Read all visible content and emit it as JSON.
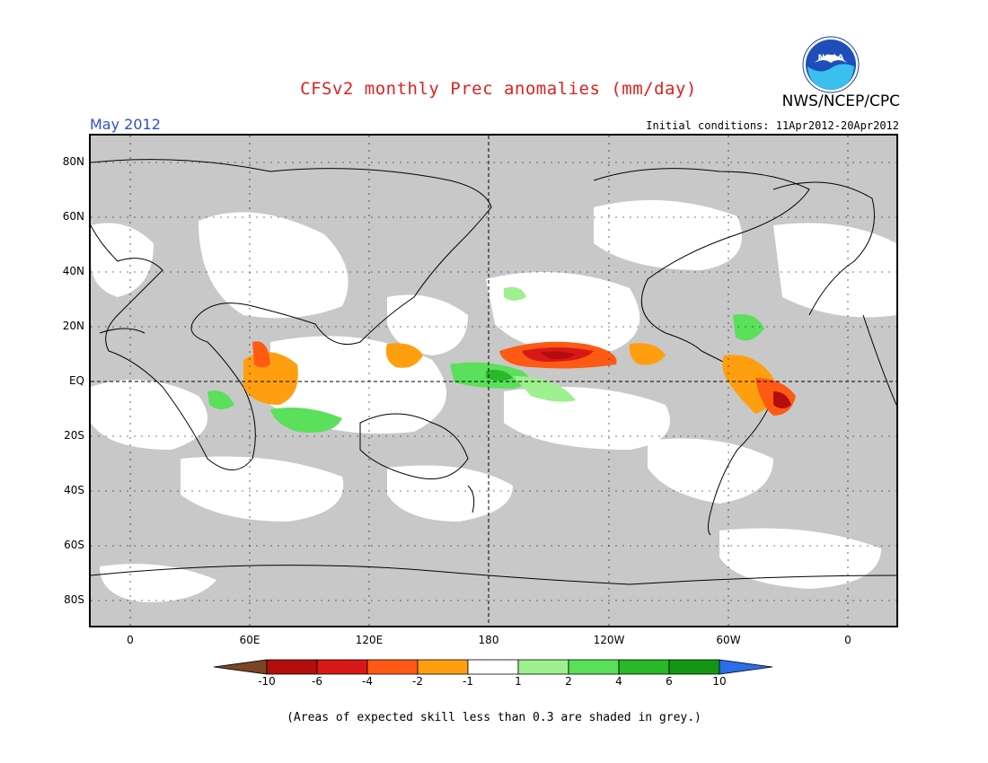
{
  "header": {
    "title": "CFSv2 monthly Prec anomalies (mm/day)",
    "org": "NWS/NCEP/CPC",
    "logo_text": "NOAA",
    "period": "May 2012",
    "initial_conditions": "Initial conditions: 11Apr2012-20Apr2012"
  },
  "map": {
    "projection": "equirectangular, centered on 180",
    "lat_labels": [
      "80N",
      "60N",
      "40N",
      "20N",
      "EQ",
      "20S",
      "40S",
      "60S",
      "80S"
    ],
    "lon_labels": [
      "0",
      "60E",
      "120E",
      "180",
      "120W",
      "60W",
      "0"
    ],
    "skill_mask_color": "#c8c8c8"
  },
  "legend": {
    "thresholds": [
      "-10",
      "-6",
      "-4",
      "-2",
      "-1",
      "1",
      "2",
      "4",
      "6",
      "10"
    ],
    "colors": [
      "#7a4425",
      "#b40d0d",
      "#d81818",
      "#ff5a14",
      "#ff9f10",
      "#ffffff",
      "#9ff08f",
      "#5ae05a",
      "#28b828",
      "#149614",
      "#2a6ee8"
    ]
  },
  "footnote": "(Areas of expected skill less than 0.3 are shaded in grey.)"
}
